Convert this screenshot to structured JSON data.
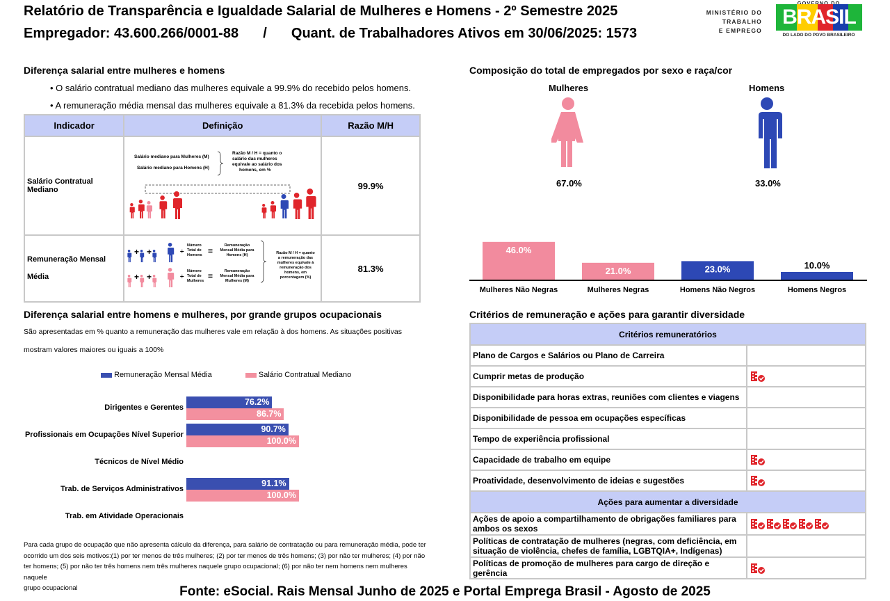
{
  "header": {
    "title": "Relatório de Transparência e Igualdade Salarial de Mulheres e Homens - 2º Semestre 2025",
    "employer_label": "Empregador: 43.600.266/0001-88",
    "separator": "/",
    "workers_label": "Quant. de Trabalhadores Ativos em 30/06/2025: 1573",
    "ministry_logo_lines": [
      "MINISTÉRIO DO",
      "TRABALHO",
      "E EMPREGO"
    ],
    "gov_logo_top": "GOVERNO DO",
    "gov_logo_word": "BRASIL",
    "gov_logo_tagline": "DO LADO DO POVO BRASILEIRO"
  },
  "salary_diff": {
    "title": "Diferença salarial entre mulheres e homens",
    "bullets": [
      "• O salário contratual mediano das mulheres equivale a 99.9% do recebido pelos homens.",
      "• A remuneração média mensal das mulheres equivale a 81.3% da recebida pelos homens."
    ],
    "table": {
      "headers": [
        "Indicador",
        "Definição",
        "Razão M/H"
      ],
      "rows": [
        {
          "indicator": "Salário Contratual Mediano",
          "ratio": "99.9%"
        },
        {
          "indicator_line1": "Remuneração Mensal",
          "indicator_line2": "Média",
          "ratio": "81.3%"
        }
      ],
      "def1": {
        "label_m": "Salário mediano para Mulheres (M)",
        "label_h": "Salário mediano para Homens (H)",
        "note_lines": [
          "Razão M / H = quanto o",
          "salário das mulheres",
          "equivale ao salário dos",
          "homens, em %"
        ]
      },
      "def2": {
        "num_label": [
          "Número",
          "Total de",
          "Homens"
        ],
        "num_label_w": [
          "Número",
          "Total de",
          "Mulheres"
        ],
        "result_h": [
          "Remuneração",
          "Mensal Média para",
          "Homens (H)"
        ],
        "result_m": [
          "Remuneração",
          "Mensal Média para",
          "Mulheres (M)"
        ],
        "note_lines": [
          "Razão M / H = quanto",
          "a remuneração das",
          "mulheres equivale à",
          "remuneração dos",
          "homens, em",
          "porcentagem (%)"
        ]
      }
    }
  },
  "composition": {
    "title": "Composição do total de empregados por sexo e raça/cor",
    "women_label": "Mulheres",
    "men_label": "Homens",
    "women_pct": "67.0%",
    "men_pct": "33.0%",
    "colors": {
      "women": "#f28b9e",
      "men": "#2d48b5"
    }
  },
  "occupational": {
    "title": "Diferença salarial entre homens e mulheres, por grande grupos ocupacionais",
    "desc_line1": "São apresentadas em % quanto a remuneração das mulheres vale em relação à dos homens. As situações positivas",
    "desc_line2": "mostram valores maiores ou iguais a 100%",
    "footnote_lines": [
      "Para cada grupo de ocupação que não apresenta cálculo da diferença, para salário de contratação ou para remuneração média, pode ter",
      "ocorrido um dos seis motivos:(1) por ter menos de três mulheres; (2) por ter menos de três homens; (3) por não ter mulheres; (4) por não",
      "ter homens; (5) por não ter três homens nem três mulheres naquele grupo ocupacional; (6) por não ter nem homens nem mulheres naquele",
      "grupo ocupacional"
    ]
  },
  "criteria": {
    "title": "Critérios de remuneração e ações para garantir diversidade",
    "header1": "Critérios remuneratórios",
    "rows1": [
      {
        "label": "Plano de Cargos e Salários ou Plano de Carreira",
        "icons": 0
      },
      {
        "label": "Cumprir metas de produção",
        "icons": 1
      },
      {
        "label": "Disponibilidade para horas extras, reuniões com clientes e viagens",
        "icons": 0
      },
      {
        "label": "Disponibilidade de pessoa em ocupações específicas",
        "icons": 0
      },
      {
        "label": "Tempo de experiência profissional",
        "icons": 0
      },
      {
        "label": "Capacidade de trabalho em equipe",
        "icons": 1
      },
      {
        "label": "Proatividade, desenvolvimento de ideias e sugestões",
        "icons": 1
      }
    ],
    "header2": "Ações para aumentar a diversidade",
    "rows2": [
      {
        "label": "Ações de apoio a compartilhamento de obrigações familiares para ambos os sexos",
        "icons": 5
      },
      {
        "label": "Políticas de contratação de mulheres (negras, com deficiência, em situação de violência, chefes de família, LGBTQIA+, Indígenas)",
        "icons": 0
      },
      {
        "label": "Políticas de promoção de mulheres para cargo de direção e gerência",
        "icons": 1
      }
    ],
    "icon_name": "building-check-icon",
    "icon_color": "#e0252b"
  },
  "footer": {
    "source": "Fonte: eSocial. Rais Mensal Junho de 2025 e Portal Emprega Brasil - Agosto de 2025"
  },
  "chart_data": [
    {
      "type": "bar",
      "categories": [
        "Mulheres Não Negras",
        "Mulheres Negras",
        "Homens Não Negros",
        "Homens Negros"
      ],
      "values": [
        46.0,
        21.0,
        23.0,
        10.0
      ],
      "labels": [
        "46.0%",
        "21.0%",
        "23.0%",
        "10.0%"
      ],
      "colors": [
        "#f28b9e",
        "#f28b9e",
        "#2d48b5",
        "#2d48b5"
      ],
      "ylim": [
        0,
        50
      ]
    },
    {
      "type": "bar",
      "orientation": "horizontal",
      "categories": [
        "Dirigentes e Gerentes",
        "Profissionais em Ocupações Nível Superior",
        "Técnicos de Nível Médio",
        "Trab. de Serviços Administrativos",
        "Trab. em Atividade Operacionais"
      ],
      "series": [
        {
          "name": "Remuneração Mensal Média",
          "color": "#3a4fb0",
          "values": [
            76.2,
            90.7,
            null,
            91.1,
            null
          ],
          "labels": [
            "76.2%",
            "90.7%",
            "",
            "91.1%",
            ""
          ]
        },
        {
          "name": "Salário Contratual Mediano",
          "color": "#f3909f",
          "values": [
            86.7,
            100.0,
            null,
            100.0,
            null
          ],
          "labels": [
            "86.7%",
            "100.0%",
            "",
            "100.0%",
            ""
          ]
        }
      ],
      "legend": "top",
      "xlim": [
        0,
        100
      ]
    }
  ]
}
